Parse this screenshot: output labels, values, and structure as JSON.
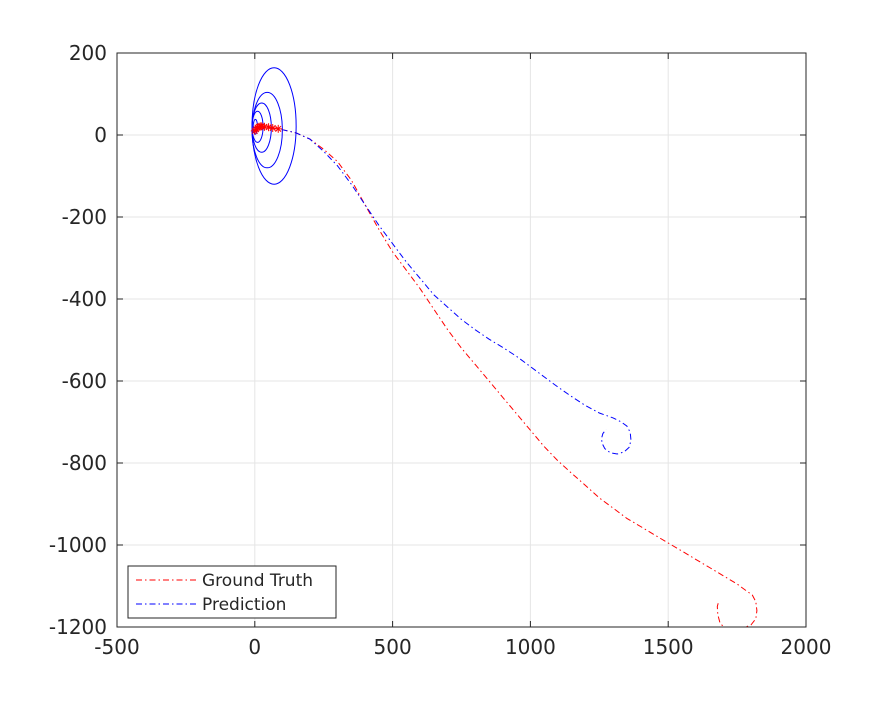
{
  "chart_data": {
    "type": "line",
    "title": "",
    "xlabel": "",
    "ylabel": "",
    "xlim": [
      -500,
      2000
    ],
    "ylim": [
      -1200,
      200
    ],
    "xticks": [
      -500,
      0,
      500,
      1000,
      1500,
      2000
    ],
    "yticks": [
      -1200,
      -1000,
      -800,
      -600,
      -400,
      -200,
      0,
      200
    ],
    "xtick_labels": [
      "-500",
      "0",
      "500",
      "1000",
      "1500",
      "2000"
    ],
    "ytick_labels": [
      "-1200",
      "-1000",
      "-800",
      "-600",
      "-400",
      "-200",
      "0",
      "200"
    ],
    "grid": true,
    "legend_position": "bottom-left",
    "series": [
      {
        "name": "Ground Truth",
        "color": "#ff0000",
        "line_style": "dash-dot",
        "x": [
          0,
          50,
          100,
          150,
          200,
          250,
          300,
          350,
          400,
          450,
          500,
          550,
          600,
          650,
          700,
          750,
          800,
          850,
          900,
          950,
          1000,
          1050,
          1100,
          1150,
          1200,
          1250,
          1300,
          1350,
          1400,
          1450,
          1500,
          1550,
          1600,
          1650,
          1700,
          1750,
          1780,
          1805,
          1818,
          1822,
          1818,
          1800,
          1770,
          1730,
          1705,
          1688,
          1680,
          1678,
          1682
        ],
        "y": [
          20,
          18,
          13,
          5,
          -10,
          -35,
          -65,
          -110,
          -170,
          -230,
          -285,
          -330,
          -375,
          -425,
          -475,
          -520,
          -560,
          -600,
          -640,
          -680,
          -720,
          -760,
          -795,
          -825,
          -855,
          -885,
          -910,
          -935,
          -955,
          -975,
          -995,
          -1015,
          -1035,
          -1055,
          -1075,
          -1095,
          -1110,
          -1122,
          -1138,
          -1160,
          -1180,
          -1195,
          -1203,
          -1205,
          -1203,
          -1190,
          -1170,
          -1150,
          -1140
        ]
      },
      {
        "name": "Prediction",
        "color": "#0000ff",
        "line_style": "dash-dot",
        "x": [
          0,
          50,
          100,
          150,
          200,
          250,
          300,
          350,
          400,
          450,
          500,
          550,
          600,
          650,
          700,
          750,
          800,
          850,
          900,
          950,
          1000,
          1050,
          1100,
          1150,
          1200,
          1250,
          1300,
          1330,
          1350,
          1362,
          1365,
          1358,
          1340,
          1315,
          1290,
          1270,
          1260,
          1258,
          1263,
          1275
        ],
        "y": [
          20,
          18,
          13,
          5,
          -10,
          -40,
          -75,
          -120,
          -170,
          -220,
          -265,
          -310,
          -350,
          -390,
          -420,
          -450,
          -475,
          -498,
          -518,
          -540,
          -565,
          -590,
          -615,
          -638,
          -660,
          -678,
          -690,
          -700,
          -710,
          -725,
          -745,
          -762,
          -773,
          -778,
          -775,
          -765,
          -752,
          -740,
          -728,
          -718
        ]
      }
    ],
    "markers": {
      "style": "asterisk",
      "color": "#ff0000",
      "x": [
        0,
        5,
        10,
        15,
        20,
        25,
        35,
        50,
        65,
        85
      ],
      "y": [
        10,
        14,
        18,
        20,
        21,
        21,
        20,
        19,
        17,
        15
      ]
    },
    "ellipses": {
      "color": "#0000ff",
      "items": [
        {
          "cx": 2,
          "cy": 20,
          "rx": 8,
          "ry": 18
        },
        {
          "cx": 10,
          "cy": 20,
          "rx": 20,
          "ry": 38
        },
        {
          "cx": 25,
          "cy": 18,
          "rx": 35,
          "ry": 60
        },
        {
          "cx": 45,
          "cy": 12,
          "rx": 55,
          "ry": 92
        },
        {
          "cx": 70,
          "cy": 22,
          "rx": 80,
          "ry": 142
        }
      ]
    }
  }
}
